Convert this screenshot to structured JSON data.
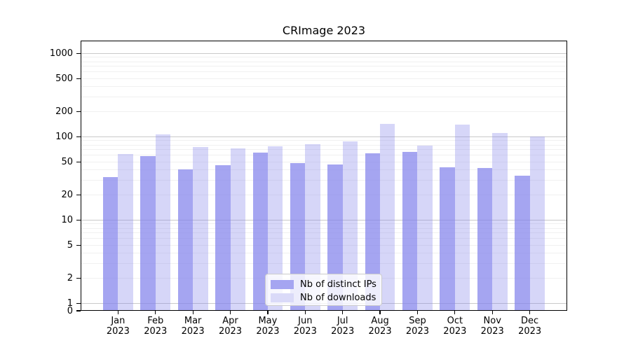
{
  "chart_data": {
    "type": "bar",
    "title": "CRImage 2023",
    "categories": [
      "Jan",
      "Feb",
      "Mar",
      "Apr",
      "May",
      "Jun",
      "Jul",
      "Aug",
      "Sep",
      "Oct",
      "Nov",
      "Dec"
    ],
    "category_year": "2023",
    "series": [
      {
        "name": "Nb of distinct IPs",
        "fill": "rgba(130,130,235,0.72)",
        "swatch": "#a5a5f1",
        "values": [
          33,
          59,
          41,
          46,
          65,
          48,
          47,
          63,
          66,
          43,
          42,
          34
        ]
      },
      {
        "name": "Nb of downloads",
        "fill": "rgba(130,130,235,0.33)",
        "swatch": "#dadaf8",
        "values": [
          62,
          108,
          76,
          72,
          77,
          82,
          89,
          142,
          79,
          140,
          111,
          101
        ]
      }
    ],
    "yscale": "symlog",
    "yticks": [
      0,
      1,
      2,
      5,
      10,
      20,
      50,
      100,
      200,
      500,
      1000
    ],
    "ylim": [
      0,
      1480
    ],
    "xlabel": "",
    "ylabel": "",
    "grid": {
      "major_values": [
        1,
        10,
        100,
        1000
      ],
      "minor_rule": "2-9 per decade",
      "major_color": "#c9c9c9",
      "minor_color": "#f0f0f0"
    },
    "legend_position": "inside-bottom-center",
    "colors": {
      "axis": "#000000",
      "text": "#000000",
      "background": "#ffffff",
      "legend_bg": "rgba(255,255,255,0.8)",
      "legend_border": "#cccccc"
    }
  }
}
